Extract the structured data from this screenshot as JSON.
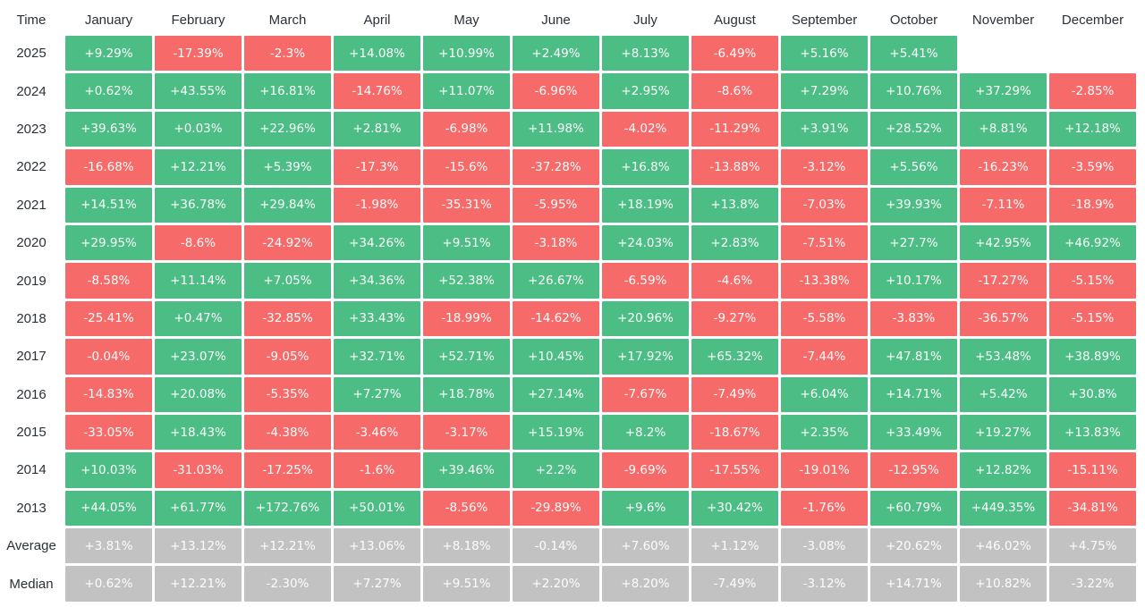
{
  "colors": {
    "positive": "#4dbd86",
    "negative": "#f76a6a",
    "summary": "#c2c2c2",
    "cell_text": "#fbfdfc",
    "label_text": "#2b3139",
    "background": "#ffffff"
  },
  "chart_data": {
    "type": "heatmap",
    "corner_label": "Time",
    "columns": [
      "January",
      "February",
      "March",
      "April",
      "May",
      "June",
      "July",
      "August",
      "September",
      "October",
      "November",
      "December"
    ],
    "legend": "green = positive monthly return, red = negative monthly return, gray = summary rows",
    "rows": [
      {
        "label": "2025",
        "type": "year",
        "values": [
          "+9.29%",
          "-17.39%",
          "-2.3%",
          "+14.08%",
          "+10.99%",
          "+2.49%",
          "+8.13%",
          "-6.49%",
          "+5.16%",
          "+5.41%",
          "",
          ""
        ]
      },
      {
        "label": "2024",
        "type": "year",
        "values": [
          "+0.62%",
          "+43.55%",
          "+16.81%",
          "-14.76%",
          "+11.07%",
          "-6.96%",
          "+2.95%",
          "-8.6%",
          "+7.29%",
          "+10.76%",
          "+37.29%",
          "-2.85%"
        ]
      },
      {
        "label": "2023",
        "type": "year",
        "values": [
          "+39.63%",
          "+0.03%",
          "+22.96%",
          "+2.81%",
          "-6.98%",
          "+11.98%",
          "-4.02%",
          "-11.29%",
          "+3.91%",
          "+28.52%",
          "+8.81%",
          "+12.18%"
        ]
      },
      {
        "label": "2022",
        "type": "year",
        "values": [
          "-16.68%",
          "+12.21%",
          "+5.39%",
          "-17.3%",
          "-15.6%",
          "-37.28%",
          "+16.8%",
          "-13.88%",
          "-3.12%",
          "+5.56%",
          "-16.23%",
          "-3.59%"
        ]
      },
      {
        "label": "2021",
        "type": "year",
        "values": [
          "+14.51%",
          "+36.78%",
          "+29.84%",
          "-1.98%",
          "-35.31%",
          "-5.95%",
          "+18.19%",
          "+13.8%",
          "-7.03%",
          "+39.93%",
          "-7.11%",
          "-18.9%"
        ]
      },
      {
        "label": "2020",
        "type": "year",
        "values": [
          "+29.95%",
          "-8.6%",
          "-24.92%",
          "+34.26%",
          "+9.51%",
          "-3.18%",
          "+24.03%",
          "+2.83%",
          "-7.51%",
          "+27.7%",
          "+42.95%",
          "+46.92%"
        ]
      },
      {
        "label": "2019",
        "type": "year",
        "values": [
          "-8.58%",
          "+11.14%",
          "+7.05%",
          "+34.36%",
          "+52.38%",
          "+26.67%",
          "-6.59%",
          "-4.6%",
          "-13.38%",
          "+10.17%",
          "-17.27%",
          "-5.15%"
        ]
      },
      {
        "label": "2018",
        "type": "year",
        "values": [
          "-25.41%",
          "+0.47%",
          "-32.85%",
          "+33.43%",
          "-18.99%",
          "-14.62%",
          "+20.96%",
          "-9.27%",
          "-5.58%",
          "-3.83%",
          "-36.57%",
          "-5.15%"
        ]
      },
      {
        "label": "2017",
        "type": "year",
        "values": [
          "-0.04%",
          "+23.07%",
          "-9.05%",
          "+32.71%",
          "+52.71%",
          "+10.45%",
          "+17.92%",
          "+65.32%",
          "-7.44%",
          "+47.81%",
          "+53.48%",
          "+38.89%"
        ]
      },
      {
        "label": "2016",
        "type": "year",
        "values": [
          "-14.83%",
          "+20.08%",
          "-5.35%",
          "+7.27%",
          "+18.78%",
          "+27.14%",
          "-7.67%",
          "-7.49%",
          "+6.04%",
          "+14.71%",
          "+5.42%",
          "+30.8%"
        ]
      },
      {
        "label": "2015",
        "type": "year",
        "values": [
          "-33.05%",
          "+18.43%",
          "-4.38%",
          "-3.46%",
          "-3.17%",
          "+15.19%",
          "+8.2%",
          "-18.67%",
          "+2.35%",
          "+33.49%",
          "+19.27%",
          "+13.83%"
        ]
      },
      {
        "label": "2014",
        "type": "year",
        "values": [
          "+10.03%",
          "-31.03%",
          "-17.25%",
          "-1.6%",
          "+39.46%",
          "+2.2%",
          "-9.69%",
          "-17.55%",
          "-19.01%",
          "-12.95%",
          "+12.82%",
          "-15.11%"
        ]
      },
      {
        "label": "2013",
        "type": "year",
        "values": [
          "+44.05%",
          "+61.77%",
          "+172.76%",
          "+50.01%",
          "-8.56%",
          "-29.89%",
          "+9.6%",
          "+30.42%",
          "-1.76%",
          "+60.79%",
          "+449.35%",
          "-34.81%"
        ]
      },
      {
        "label": "Average",
        "type": "summary",
        "values": [
          "+3.81%",
          "+13.12%",
          "+12.21%",
          "+13.06%",
          "+8.18%",
          "-0.14%",
          "+7.60%",
          "+1.12%",
          "-3.08%",
          "+20.62%",
          "+46.02%",
          "+4.75%"
        ]
      },
      {
        "label": "Median",
        "type": "summary",
        "values": [
          "+0.62%",
          "+12.21%",
          "-2.30%",
          "+7.27%",
          "+9.51%",
          "+2.20%",
          "+8.20%",
          "-7.49%",
          "-3.12%",
          "+14.71%",
          "+10.82%",
          "-3.22%"
        ]
      }
    ]
  }
}
